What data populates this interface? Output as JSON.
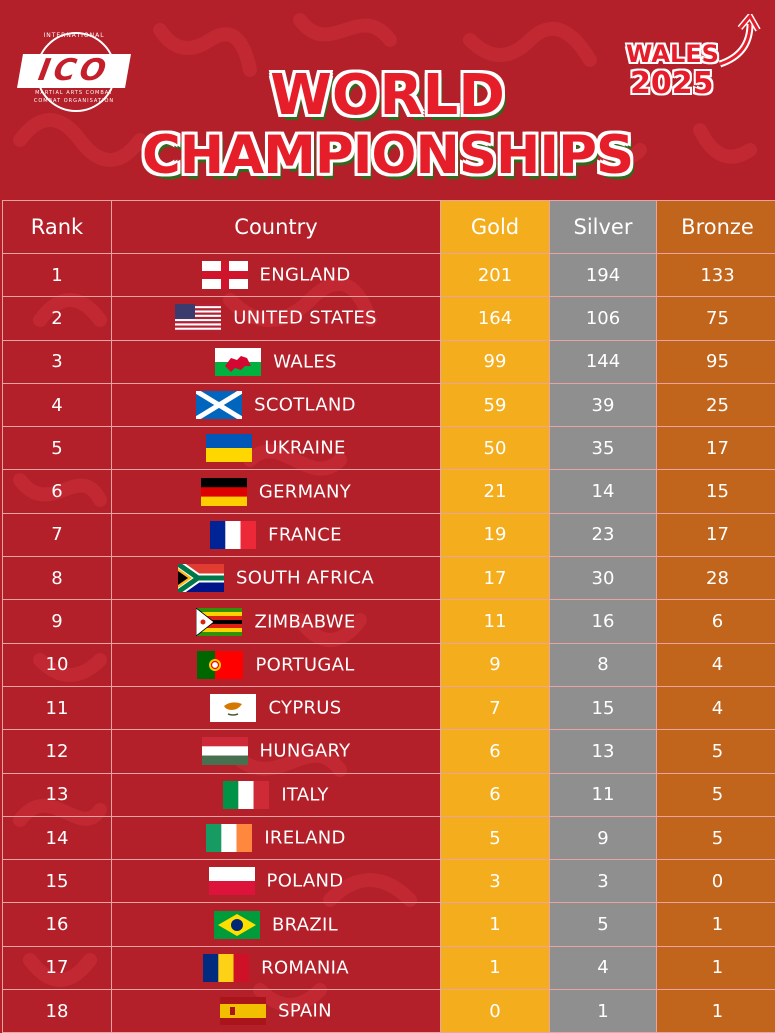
{
  "logo": {
    "brand": "ICO",
    "top_text": "INTERNATIONAL",
    "mid_text": "MARTIAL ARTS COMBAT",
    "bottom_text": "COMBAT ORGANISATION"
  },
  "event_badge": {
    "line1": "WALES",
    "line2": "2025"
  },
  "title": {
    "line1": "WORLD",
    "line2": "CHAMPIONSHIPS"
  },
  "table": {
    "headers": {
      "rank": "Rank",
      "country": "Country",
      "gold": "Gold",
      "silver": "Silver",
      "bronze": "Bronze"
    },
    "colors": {
      "gold": "#f4ad1d",
      "silver": "#8f8f8f",
      "bronze": "#c2651c",
      "background": "#b3202a"
    },
    "rows": [
      {
        "rank": "1",
        "country": "ENGLAND",
        "flag": "england-flag",
        "gold": "201",
        "silver": "194",
        "bronze": "133"
      },
      {
        "rank": "2",
        "country": "UNITED STATES",
        "flag": "usa-flag",
        "gold": "164",
        "silver": "106",
        "bronze": "75"
      },
      {
        "rank": "3",
        "country": "WALES",
        "flag": "wales-flag",
        "gold": "99",
        "silver": "144",
        "bronze": "95"
      },
      {
        "rank": "4",
        "country": "SCOTLAND",
        "flag": "scotland-flag",
        "gold": "59",
        "silver": "39",
        "bronze": "25"
      },
      {
        "rank": "5",
        "country": "UKRAINE",
        "flag": "ukraine-flag",
        "gold": "50",
        "silver": "35",
        "bronze": "17"
      },
      {
        "rank": "6",
        "country": "GERMANY",
        "flag": "germany-flag",
        "gold": "21",
        "silver": "14",
        "bronze": "15"
      },
      {
        "rank": "7",
        "country": "FRANCE",
        "flag": "france-flag",
        "gold": "19",
        "silver": "23",
        "bronze": "17"
      },
      {
        "rank": "8",
        "country": "SOUTH AFRICA",
        "flag": "south-africa-flag",
        "gold": "17",
        "silver": "30",
        "bronze": "28"
      },
      {
        "rank": "9",
        "country": "ZIMBABWE",
        "flag": "zimbabwe-flag",
        "gold": "11",
        "silver": "16",
        "bronze": "6"
      },
      {
        "rank": "10",
        "country": "PORTUGAL",
        "flag": "portugal-flag",
        "gold": "9",
        "silver": "8",
        "bronze": "4"
      },
      {
        "rank": "11",
        "country": "CYPRUS",
        "flag": "cyprus-flag",
        "gold": "7",
        "silver": "15",
        "bronze": "4"
      },
      {
        "rank": "12",
        "country": "HUNGARY",
        "flag": "hungary-flag",
        "gold": "6",
        "silver": "13",
        "bronze": "5"
      },
      {
        "rank": "13",
        "country": "ITALY",
        "flag": "italy-flag",
        "gold": "6",
        "silver": "11",
        "bronze": "5"
      },
      {
        "rank": "14",
        "country": "IRELAND",
        "flag": "ireland-flag",
        "gold": "5",
        "silver": "9",
        "bronze": "5"
      },
      {
        "rank": "15",
        "country": "POLAND",
        "flag": "poland-flag",
        "gold": "3",
        "silver": "3",
        "bronze": "0"
      },
      {
        "rank": "16",
        "country": "BRAZIL",
        "flag": "brazil-flag",
        "gold": "1",
        "silver": "5",
        "bronze": "1"
      },
      {
        "rank": "17",
        "country": "ROMANIA",
        "flag": "romania-flag",
        "gold": "1",
        "silver": "4",
        "bronze": "1"
      },
      {
        "rank": "18",
        "country": "SPAIN",
        "flag": "spain-flag",
        "gold": "0",
        "silver": "1",
        "bronze": "1"
      }
    ]
  }
}
